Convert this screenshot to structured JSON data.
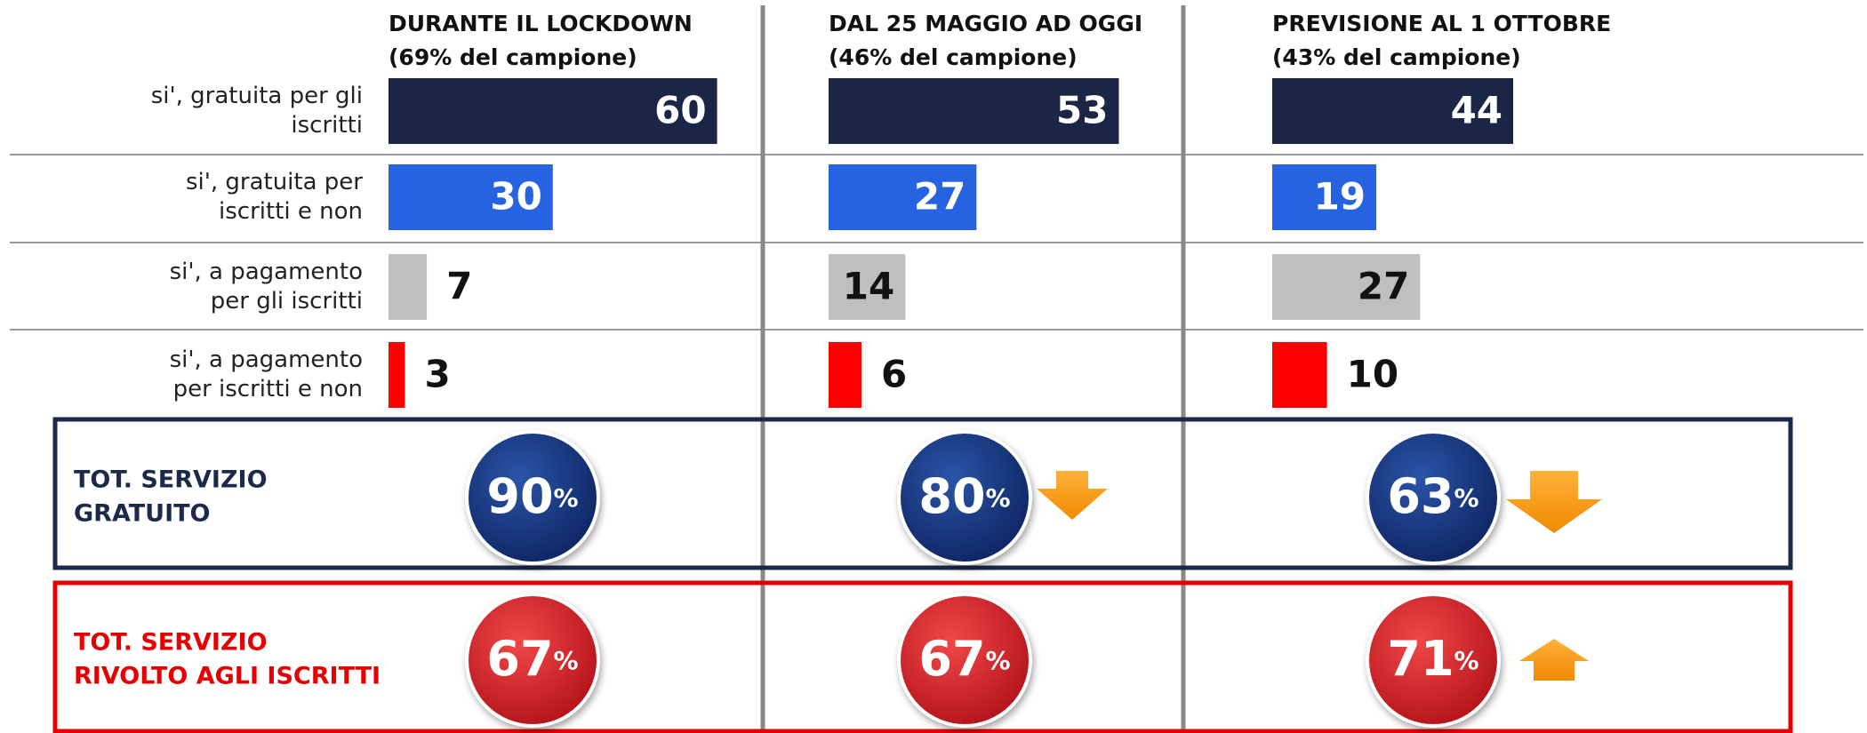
{
  "chart_data": {
    "type": "bar",
    "categories": [
      [
        "si', gratuita per gli",
        "iscritti"
      ],
      [
        "si', gratuita per",
        "iscritti e non"
      ],
      [
        "si', a pagamento",
        "per gli iscritti"
      ],
      [
        "si', a pagamento",
        "per iscritti e non"
      ]
    ],
    "colors": [
      "#1b2647",
      "#2563e0",
      "#bfbfbf",
      "#ff0000"
    ],
    "series": [
      {
        "name": "DURANTE IL LOCKDOWN",
        "sample": "(69% del campione)",
        "values": [
          60,
          30,
          7,
          3
        ]
      },
      {
        "name": "DAL 25 MAGGIO AD OGGI",
        "sample": "(46% del campione)",
        "values": [
          53,
          27,
          14,
          6
        ]
      },
      {
        "name": "PREVISIONE AL 1 OTTOBRE",
        "sample": "(43% del campione)",
        "values": [
          44,
          19,
          27,
          10
        ]
      }
    ],
    "totals": [
      {
        "label": [
          "TOT. SERVIZIO",
          "GRATUITO"
        ],
        "color": "#1b2a4a",
        "values": [
          90,
          80,
          63
        ],
        "value_labels": [
          "90%",
          "80%",
          "63%"
        ]
      },
      {
        "label": [
          "TOT. SERVIZIO",
          "RIVOLTO AGLI ISCRITTI"
        ],
        "color": "#e60000",
        "values": [
          67,
          67,
          71
        ],
        "value_labels": [
          "67%",
          "67%",
          "71%"
        ]
      }
    ]
  }
}
